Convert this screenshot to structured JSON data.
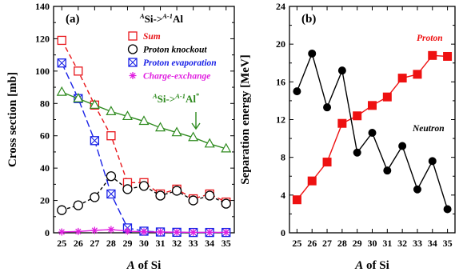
{
  "chart_data": [
    {
      "panel": "(a)",
      "type": "line",
      "xlabel_italic": "A",
      "xlabel_rest": " of Si",
      "ylabel": "Cross section [mb]",
      "xlim": [
        24.5,
        35.5
      ],
      "ylim": [
        0,
        140
      ],
      "x_ticks": [
        25,
        26,
        27,
        28,
        29,
        30,
        31,
        32,
        33,
        34,
        35
      ],
      "y_ticks": [
        0,
        20,
        40,
        60,
        80,
        100,
        120,
        140
      ],
      "legend_title": {
        "sup1": "A",
        "base1": "Si->",
        "sup2": "A-1",
        "base2": "Al"
      },
      "legend_position": "top-right",
      "annotation": {
        "sup1": "A",
        "base1": "Si->",
        "sup2": "A-1",
        "base2": "Al",
        "sup3": "*"
      },
      "series": [
        {
          "name": "Sum",
          "color": "#e8161b",
          "marker": "open-square",
          "dash": "6,4",
          "x": [
            25,
            26,
            27,
            28,
            29,
            30,
            31,
            32,
            33,
            34,
            35
          ],
          "y": [
            119,
            100,
            79,
            60,
            31,
            31,
            24,
            27,
            21,
            24,
            19
          ]
        },
        {
          "name": "Proton knockout",
          "color": "#000000",
          "marker": "open-circle",
          "dash": "4,3",
          "x": [
            25,
            26,
            27,
            28,
            29,
            30,
            31,
            32,
            33,
            34,
            35
          ],
          "y": [
            14,
            17,
            22,
            35,
            27,
            29,
            23,
            26,
            20,
            23,
            18
          ]
        },
        {
          "name": "Proton evaporation",
          "color": "#1a22e6",
          "marker": "crossed-square",
          "dash": "9,4",
          "x": [
            25,
            26,
            27,
            28,
            29,
            30,
            31,
            32,
            33,
            34,
            35
          ],
          "y": [
            105,
            83,
            57,
            24,
            3,
            1,
            0.5,
            0.3,
            0.2,
            0.2,
            0.2
          ]
        },
        {
          "name": "Charge-exchange",
          "color": "#e020e0",
          "marker": "asterisk",
          "dash": "",
          "x": [
            25,
            26,
            27,
            28,
            29,
            30,
            31,
            32,
            33,
            34,
            35
          ],
          "y": [
            0.5,
            0.8,
            1.5,
            2,
            1,
            0.6,
            0.5,
            0.4,
            0.3,
            0.3,
            0.3
          ]
        },
        {
          "name": "",
          "color": "#2e8a1e",
          "marker": "open-triangle",
          "dash": "",
          "x": [
            25,
            26,
            27,
            28,
            29,
            30,
            31,
            32,
            33,
            34,
            35
          ],
          "y": [
            87,
            83,
            79,
            75,
            72,
            69,
            65,
            62,
            59,
            55,
            52
          ]
        }
      ]
    },
    {
      "panel": "(b)",
      "type": "line",
      "xlabel_italic": "A",
      "xlabel_rest": " of Si",
      "ylabel": "Separation energy [MeV]",
      "xlim": [
        24.5,
        35.5
      ],
      "ylim": [
        0,
        24
      ],
      "x_ticks": [
        25,
        26,
        27,
        28,
        29,
        30,
        31,
        32,
        33,
        34,
        35
      ],
      "y_ticks": [
        0,
        4,
        8,
        12,
        16,
        20,
        24
      ],
      "series": [
        {
          "name": "Proton",
          "color": "#ee1111",
          "marker": "filled-square",
          "x": [
            25,
            26,
            27,
            28,
            29,
            30,
            31,
            32,
            33,
            34,
            35
          ],
          "y": [
            3.5,
            5.5,
            7.5,
            11.6,
            12.4,
            13.5,
            14.4,
            16.4,
            16.8,
            18.8,
            18.7
          ]
        },
        {
          "name": "Neutron",
          "color": "#000000",
          "marker": "filled-circle",
          "x": [
            25,
            26,
            27,
            28,
            29,
            30,
            31,
            32,
            33,
            34,
            35
          ],
          "y": [
            15,
            19,
            13.3,
            17.2,
            8.5,
            10.6,
            6.6,
            9.2,
            4.6,
            7.6,
            2.5
          ]
        }
      ]
    }
  ]
}
